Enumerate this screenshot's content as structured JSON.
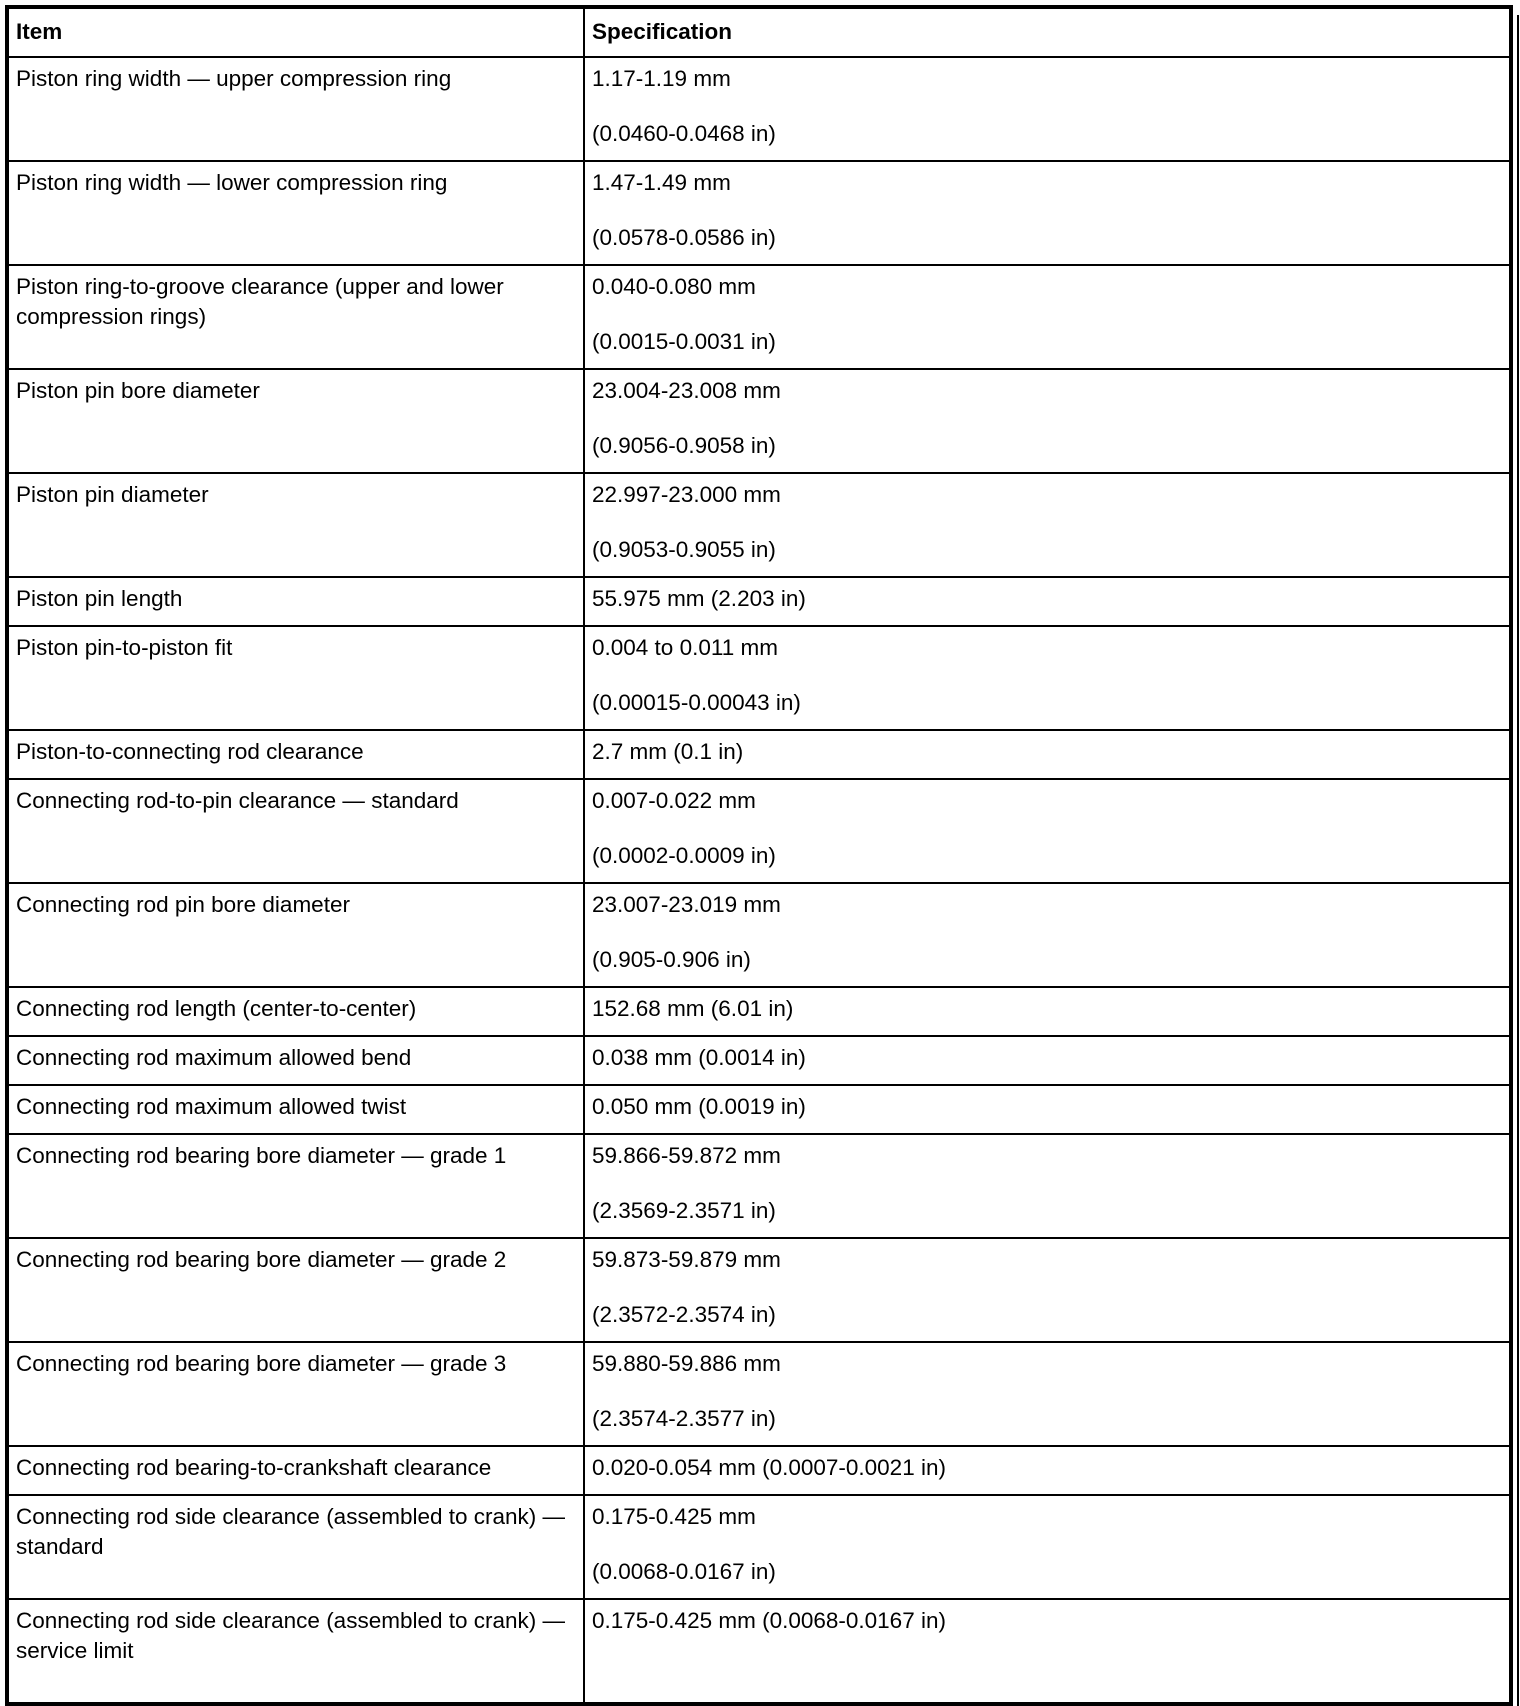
{
  "headers": {
    "item": "Item",
    "spec": "Specification"
  },
  "rows": [
    {
      "item": "Piston ring width — upper compression ring",
      "spec": [
        "1.17-1.19 mm",
        "(0.0460-0.0468 in)"
      ]
    },
    {
      "item": "Piston ring width — lower compression ring",
      "spec": [
        "1.47-1.49 mm",
        "(0.0578-0.0586 in)"
      ]
    },
    {
      "item": "Piston ring-to-groove clearance (upper and lower compression rings)",
      "spec": [
        "0.040-0.080 mm",
        "(0.0015-0.0031 in)"
      ]
    },
    {
      "item": "Piston pin bore diameter",
      "spec": [
        "23.004-23.008 mm",
        "(0.9056-0.9058 in)"
      ]
    },
    {
      "item": "Piston pin diameter",
      "spec": [
        "22.997-23.000 mm",
        "(0.9053-0.9055 in)"
      ]
    },
    {
      "item": "Piston pin length",
      "spec": [
        "55.975 mm (2.203 in)"
      ]
    },
    {
      "item": "Piston pin-to-piston fit",
      "spec": [
        "0.004 to 0.011 mm",
        "(0.00015-0.00043 in)"
      ]
    },
    {
      "item": "Piston-to-connecting rod clearance",
      "spec": [
        "2.7 mm (0.1 in)"
      ]
    },
    {
      "item": "Connecting rod-to-pin clearance — standard",
      "spec": [
        "0.007-0.022 mm",
        "(0.0002-0.0009 in)"
      ]
    },
    {
      "item": "Connecting rod pin bore diameter",
      "spec": [
        "23.007-23.019 mm",
        "(0.905-0.906 in)"
      ]
    },
    {
      "item": "Connecting rod length (center-to-center)",
      "spec": [
        "152.68 mm (6.01 in)"
      ]
    },
    {
      "item": "Connecting rod maximum allowed bend",
      "spec": [
        "0.038 mm (0.0014 in)"
      ]
    },
    {
      "item": "Connecting rod maximum allowed twist",
      "spec": [
        "0.050 mm (0.0019 in)"
      ]
    },
    {
      "item": "Connecting rod bearing bore diameter — grade 1",
      "spec": [
        "59.866-59.872 mm",
        "(2.3569-2.3571 in)"
      ]
    },
    {
      "item": "Connecting rod bearing bore diameter — grade 2",
      "spec": [
        "59.873-59.879 mm",
        "(2.3572-2.3574 in)"
      ]
    },
    {
      "item": "Connecting rod bearing bore diameter — grade 3",
      "spec": [
        "59.880-59.886 mm",
        "(2.3574-2.3577 in)"
      ]
    },
    {
      "item": "Connecting rod bearing-to-crankshaft clearance",
      "spec": [
        "0.020-0.054 mm (0.0007-0.0021 in)"
      ]
    },
    {
      "item": "Connecting rod side clearance (assembled to crank) — standard",
      "spec": [
        "0.175-0.425 mm",
        "(0.0068-0.0167 in)"
      ]
    },
    {
      "item": "Connecting rod side clearance (assembled to crank) — service limit",
      "spec": [
        "0.175-0.425 mm (0.0068-0.0167 in)"
      ]
    }
  ]
}
